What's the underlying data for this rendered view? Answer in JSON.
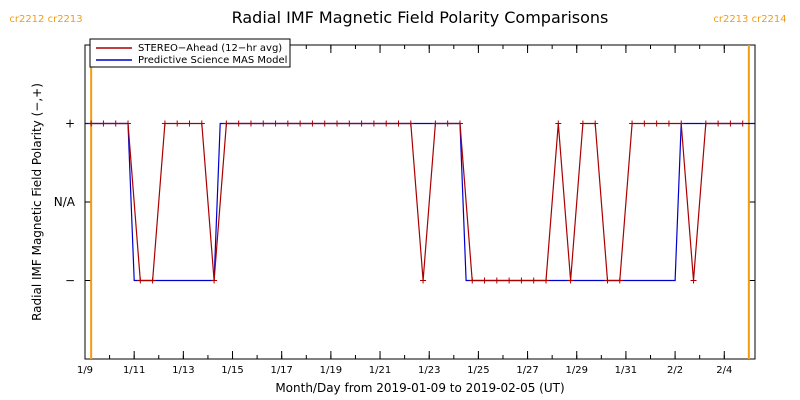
{
  "chart_data": {
    "type": "line",
    "title": "Radial IMF Magnetic Field Polarity Comparisons",
    "xlabel": "Month/Day from 2019-01-09 to 2019-02-05 (UT)",
    "ylabel": "Radial IMF Magnetic Field Polarity (−,+)",
    "x_domain": [
      "2019-01-09T00:00",
      "2019-02-05T06:00"
    ],
    "x_tick_dates": [
      "2019-01-09",
      "2019-01-11",
      "2019-01-13",
      "2019-01-15",
      "2019-01-17",
      "2019-01-19",
      "2019-01-21",
      "2019-01-23",
      "2019-01-25",
      "2019-01-27",
      "2019-01-29",
      "2019-01-31",
      "2019-02-02",
      "2019-02-04"
    ],
    "x_tick_labels": [
      "1/9",
      "1/11",
      "1/13",
      "1/15",
      "1/17",
      "1/19",
      "1/21",
      "1/23",
      "1/25",
      "1/27",
      "1/29",
      "1/31",
      "2/2",
      "2/4"
    ],
    "y_categories": [
      "−",
      "N/A",
      "+"
    ],
    "y_values_map": {
      "−": -1,
      "N/A": 0,
      "+": 1
    },
    "ylim": [
      -2,
      2
    ],
    "legend": {
      "position": "top-left",
      "entries": [
        "STEREO−Ahead (12−hr avg)",
        "Predictive Science MAS Model"
      ]
    },
    "carrington_markers": {
      "left": "cr2212 cr2213",
      "right": "cr2213 cr2214",
      "color": "#f39c12",
      "dates": [
        "2019-01-09T06:00",
        "2019-02-05T00:00"
      ]
    },
    "series": [
      {
        "name": "STEREO−Ahead (12−hr avg)",
        "color": "#aa0000",
        "marker": "+",
        "points": [
          [
            "2019-01-09T06:00",
            1
          ],
          [
            "2019-01-09T18:00",
            1
          ],
          [
            "2019-01-10T06:00",
            1
          ],
          [
            "2019-01-10T18:00",
            1
          ],
          [
            "2019-01-11T06:00",
            -1
          ],
          [
            "2019-01-11T18:00",
            -1
          ],
          [
            "2019-01-12T06:00",
            1
          ],
          [
            "2019-01-12T18:00",
            1
          ],
          [
            "2019-01-13T06:00",
            1
          ],
          [
            "2019-01-13T18:00",
            1
          ],
          [
            "2019-01-14T06:00",
            -1
          ],
          [
            "2019-01-14T18:00",
            1
          ],
          [
            "2019-01-15T06:00",
            1
          ],
          [
            "2019-01-15T18:00",
            1
          ],
          [
            "2019-01-16T06:00",
            1
          ],
          [
            "2019-01-16T18:00",
            1
          ],
          [
            "2019-01-17T06:00",
            1
          ],
          [
            "2019-01-17T18:00",
            1
          ],
          [
            "2019-01-18T06:00",
            1
          ],
          [
            "2019-01-18T18:00",
            1
          ],
          [
            "2019-01-19T06:00",
            1
          ],
          [
            "2019-01-19T18:00",
            1
          ],
          [
            "2019-01-20T06:00",
            1
          ],
          [
            "2019-01-20T18:00",
            1
          ],
          [
            "2019-01-21T06:00",
            1
          ],
          [
            "2019-01-21T18:00",
            1
          ],
          [
            "2019-01-22T06:00",
            1
          ],
          [
            "2019-01-22T18:00",
            -1
          ],
          [
            "2019-01-23T06:00",
            1
          ],
          [
            "2019-01-23T18:00",
            1
          ],
          [
            "2019-01-24T06:00",
            1
          ],
          [
            "2019-01-24T18:00",
            -1
          ],
          [
            "2019-01-25T06:00",
            -1
          ],
          [
            "2019-01-25T18:00",
            -1
          ],
          [
            "2019-01-26T06:00",
            -1
          ],
          [
            "2019-01-26T18:00",
            -1
          ],
          [
            "2019-01-27T06:00",
            -1
          ],
          [
            "2019-01-27T18:00",
            -1
          ],
          [
            "2019-01-28T06:00",
            1
          ],
          [
            "2019-01-28T18:00",
            -1
          ],
          [
            "2019-01-29T06:00",
            1
          ],
          [
            "2019-01-29T18:00",
            1
          ],
          [
            "2019-01-30T06:00",
            -1
          ],
          [
            "2019-01-30T18:00",
            -1
          ],
          [
            "2019-01-31T06:00",
            1
          ],
          [
            "2019-01-31T18:00",
            1
          ],
          [
            "2019-02-01T06:00",
            1
          ],
          [
            "2019-02-01T18:00",
            1
          ],
          [
            "2019-02-02T06:00",
            1
          ],
          [
            "2019-02-02T18:00",
            -1
          ],
          [
            "2019-02-03T06:00",
            1
          ],
          [
            "2019-02-03T18:00",
            1
          ],
          [
            "2019-02-04T06:00",
            1
          ],
          [
            "2019-02-04T18:00",
            1
          ]
        ]
      },
      {
        "name": "Predictive Science MAS Model",
        "color": "#0000cc",
        "points": [
          [
            "2019-01-09T00:00",
            1
          ],
          [
            "2019-01-10T18:00",
            1
          ],
          [
            "2019-01-11T00:00",
            -1
          ],
          [
            "2019-01-14T06:00",
            -1
          ],
          [
            "2019-01-14T12:00",
            1
          ],
          [
            "2019-01-24T06:00",
            1
          ],
          [
            "2019-01-24T12:00",
            -1
          ],
          [
            "2019-02-02T00:00",
            -1
          ],
          [
            "2019-02-02T06:00",
            1
          ],
          [
            "2019-02-05T06:00",
            1
          ]
        ]
      }
    ]
  }
}
